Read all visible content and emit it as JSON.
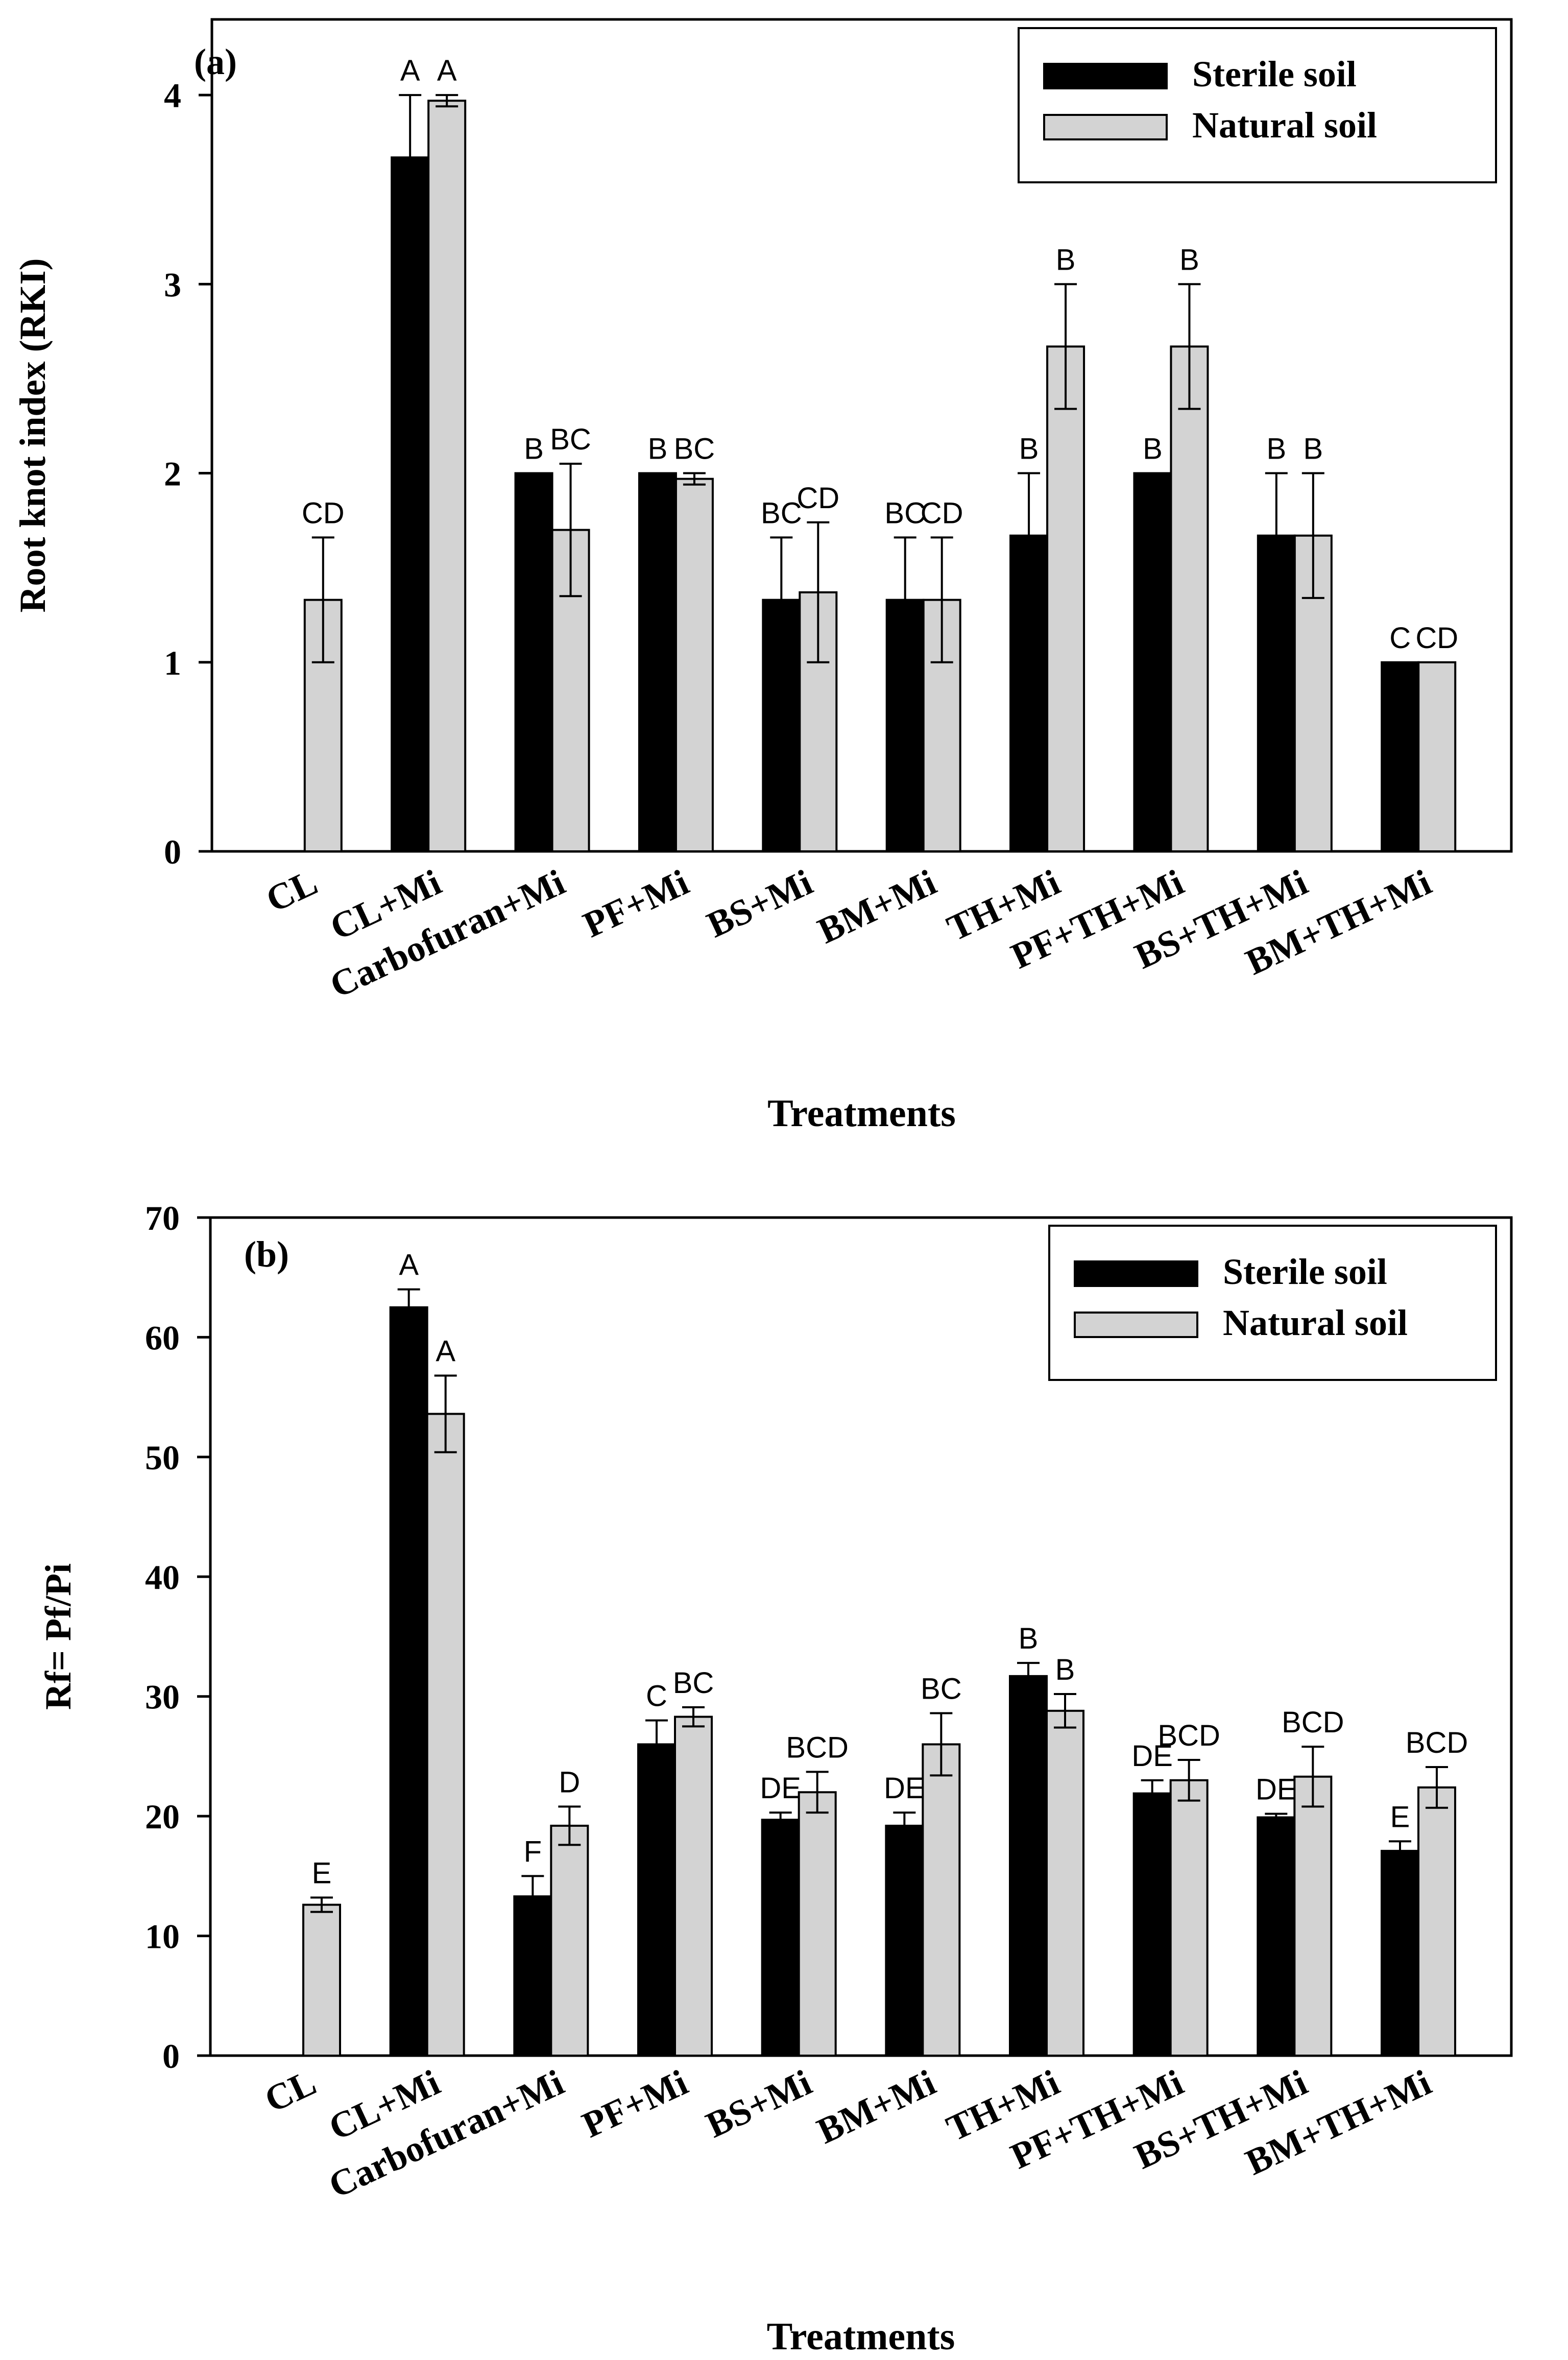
{
  "colors": {
    "sterile": "#000000",
    "natural": "#d3d3d3",
    "axis": "#000000",
    "background": "#ffffff"
  },
  "chart_data": [
    {
      "type": "bar",
      "panel_label": "(a)",
      "ylabel": "Root knot index (RKI)",
      "xlabel": "Treatments",
      "ylim": [
        0,
        4.4
      ],
      "yticks": [
        0,
        1,
        2,
        3,
        4
      ],
      "yticks_label": [
        "0",
        "1",
        "2",
        "3",
        "4"
      ],
      "legend": {
        "position": "top-right",
        "entries": [
          "Sterile soil",
          "Natural soil"
        ]
      },
      "categories": [
        "CL",
        "CL+Mi",
        "Carbofuran+Mi",
        "PF+Mi",
        "BS+Mi",
        "BM+Mi",
        "TH+Mi",
        "PF+TH+Mi",
        "BS+TH+Mi",
        "BM+TH+Mi"
      ],
      "series": [
        {
          "name": "Sterile soil",
          "values": [
            0,
            3.67,
            2.0,
            2.0,
            1.33,
            1.33,
            1.67,
            2.0,
            1.67,
            1.0
          ],
          "errors": [
            0,
            0.33,
            0,
            0,
            0.33,
            0.33,
            0.33,
            0,
            0.33,
            0
          ],
          "letters": [
            "",
            "A",
            "B",
            "B",
            "BC",
            "BC",
            "B",
            "B",
            "B",
            "C"
          ]
        },
        {
          "name": "Natural soil",
          "values": [
            1.33,
            3.97,
            1.7,
            1.97,
            1.37,
            1.33,
            2.67,
            2.67,
            1.67,
            1.0
          ],
          "errors": [
            0.33,
            0.03,
            0.35,
            0.03,
            0.37,
            0.33,
            0.33,
            0.33,
            0.33,
            0
          ],
          "letters": [
            "CD",
            "A",
            "BC",
            "BC",
            "CD",
            "CD",
            "B",
            "B",
            "B",
            "CD"
          ]
        }
      ]
    },
    {
      "type": "bar",
      "panel_label": "(b)",
      "ylabel": "Rf= Pf/Pi",
      "xlabel": "Treatments",
      "ylim": [
        0,
        70
      ],
      "yticks": [
        0,
        10,
        20,
        30,
        40,
        50,
        60,
        70
      ],
      "yticks_label": [
        "0",
        "10",
        "20",
        "30",
        "40",
        "50",
        "60",
        "70"
      ],
      "legend": {
        "position": "top-right",
        "entries": [
          "Sterile soil",
          "Natural soil"
        ]
      },
      "categories": [
        "CL",
        "CL+Mi",
        "Carbofuran+Mi",
        "PF+Mi",
        "BS+Mi",
        "BM+Mi",
        "TH+Mi",
        "PF+TH+Mi",
        "BS+TH+Mi",
        "BM+TH+Mi"
      ],
      "series": [
        {
          "name": "Sterile soil",
          "values": [
            0,
            62.5,
            13.3,
            26.0,
            19.7,
            19.2,
            31.7,
            21.9,
            19.9,
            17.1
          ],
          "errors": [
            0,
            1.5,
            1.7,
            2.0,
            0.6,
            1.1,
            1.1,
            1.1,
            0.3,
            0.8
          ],
          "letters": [
            "",
            "A",
            "F",
            "C",
            "DE",
            "DE",
            "B",
            "DE",
            "DE",
            "E"
          ]
        },
        {
          "name": "Natural soil",
          "values": [
            12.6,
            53.6,
            19.2,
            28.3,
            22.0,
            26.0,
            28.8,
            23.0,
            23.3,
            22.4
          ],
          "errors": [
            0.6,
            3.2,
            1.6,
            0.8,
            1.7,
            2.6,
            1.4,
            1.7,
            2.5,
            1.7
          ],
          "letters": [
            "E",
            "A",
            "D",
            "BC",
            "BCD",
            "BC",
            "B",
            "BCD",
            "BCD",
            "BCD"
          ]
        }
      ]
    }
  ]
}
